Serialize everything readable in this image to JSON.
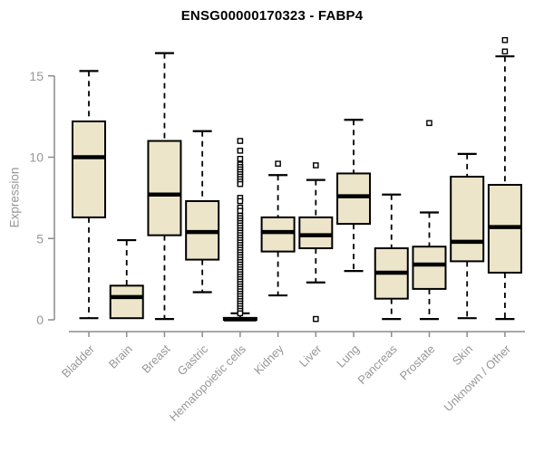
{
  "chart": {
    "title": "ENSG00000170323 - FABP4",
    "ylabel": "Expression"
  },
  "chart_data": {
    "type": "boxplot",
    "title": "ENSG00000170323 - FABP4",
    "xlabel": "",
    "ylabel": "Expression",
    "ylim": [
      0,
      17.5
    ],
    "yticks": [
      0,
      5,
      10,
      15
    ],
    "grid": false,
    "legend": "none",
    "categories": [
      "Bladder",
      "Brain",
      "Breast",
      "Gastric",
      "Hematopoietic cells",
      "Kidney",
      "Liver",
      "Lung",
      "Pancreas",
      "Prostate",
      "Skin",
      "Unknown / Other"
    ],
    "series": [
      {
        "name": "Bladder",
        "min": 0.1,
        "q1": 6.3,
        "median": 10.0,
        "q3": 12.2,
        "max": 15.3,
        "outliers": []
      },
      {
        "name": "Brain",
        "min": 0.1,
        "q1": 0.1,
        "median": 1.4,
        "q3": 2.1,
        "max": 4.9,
        "outliers": []
      },
      {
        "name": "Breast",
        "min": 0.05,
        "q1": 5.2,
        "median": 7.7,
        "q3": 11.0,
        "max": 16.4,
        "outliers": []
      },
      {
        "name": "Gastric",
        "min": 1.7,
        "q1": 3.7,
        "median": 5.4,
        "q3": 7.3,
        "max": 11.6,
        "outliers": []
      },
      {
        "name": "Hematopoietic cells",
        "min": 0.0,
        "q1": 0.0,
        "median": 0.03,
        "q3": 0.12,
        "max": 0.4,
        "outliers": [
          11.0,
          10.4,
          9.9,
          9.55,
          9.4,
          9.25,
          9.1,
          8.95,
          8.8,
          8.65,
          8.5,
          8.35,
          7.5,
          7.3,
          6.9,
          6.7,
          6.4,
          6.25,
          6.1,
          5.95,
          5.8,
          5.65,
          5.5,
          5.35,
          5.2,
          5.05,
          4.9,
          4.75,
          4.6,
          4.45,
          4.3,
          4.15,
          4.0,
          3.85,
          3.7,
          3.55,
          3.4,
          3.25,
          3.1,
          2.95,
          2.8,
          2.65,
          2.5,
          2.35,
          2.2,
          2.05,
          1.9,
          1.75,
          1.6,
          1.45,
          1.3,
          1.15,
          1.0,
          0.85,
          0.7,
          0.55,
          0.4
        ]
      },
      {
        "name": "Kidney",
        "min": 1.5,
        "q1": 4.2,
        "median": 5.4,
        "q3": 6.3,
        "max": 8.9,
        "outliers": [
          9.6
        ]
      },
      {
        "name": "Liver",
        "min": 2.3,
        "q1": 4.4,
        "median": 5.2,
        "q3": 6.3,
        "max": 8.6,
        "outliers": [
          9.5,
          0.05
        ]
      },
      {
        "name": "Lung",
        "min": 3.0,
        "q1": 5.9,
        "median": 7.6,
        "q3": 9.0,
        "max": 12.3,
        "outliers": []
      },
      {
        "name": "Pancreas",
        "min": 0.05,
        "q1": 1.3,
        "median": 2.9,
        "q3": 4.4,
        "max": 7.7,
        "outliers": []
      },
      {
        "name": "Prostate",
        "min": 0.05,
        "q1": 1.9,
        "median": 3.4,
        "q3": 4.5,
        "max": 6.6,
        "outliers": [
          12.1
        ]
      },
      {
        "name": "Skin",
        "min": 0.1,
        "q1": 3.6,
        "median": 4.8,
        "q3": 8.8,
        "max": 10.2,
        "outliers": []
      },
      {
        "name": "Unknown / Other",
        "min": 0.05,
        "q1": 2.9,
        "median": 5.7,
        "q3": 8.3,
        "max": 16.2,
        "outliers": [
          17.2,
          16.5
        ]
      }
    ],
    "colors": {
      "box_fill": "#EDE5C9",
      "box_stroke": "#000000",
      "median": "#000000",
      "axis": "#8C8C8C",
      "tick_text": "#979797",
      "title_text": "#000000",
      "background": "#FFFFFF"
    }
  }
}
